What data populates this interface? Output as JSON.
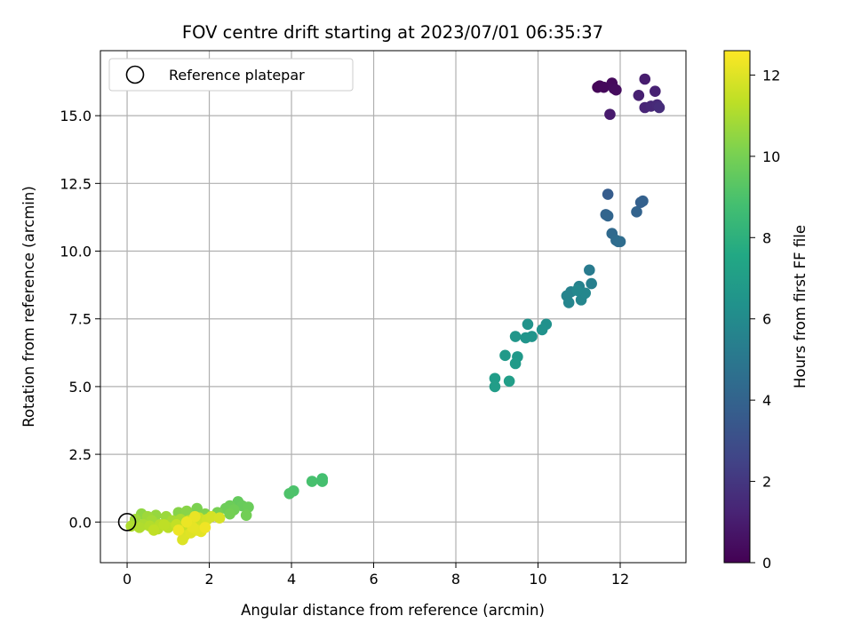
{
  "chart_data": {
    "type": "scatter",
    "title": "FOV centre drift starting at 2023/07/01 06:35:37",
    "xlabel": "Angular distance from reference (arcmin)",
    "ylabel": "Rotation from reference (arcmin)",
    "xlim": [
      -0.65,
      13.6
    ],
    "ylim": [
      -1.5,
      17.4
    ],
    "xticks": [
      0,
      2,
      4,
      6,
      8,
      10,
      12
    ],
    "xtick_labels": [
      "0",
      "2",
      "4",
      "6",
      "8",
      "10",
      "12"
    ],
    "yticks": [
      0.0,
      2.5,
      5.0,
      7.5,
      10.0,
      12.5,
      15.0
    ],
    "ytick_labels": [
      "0.0",
      "2.5",
      "5.0",
      "7.5",
      "10.0",
      "12.5",
      "15.0"
    ],
    "grid": true,
    "legend": {
      "placement": "upper-left",
      "entries": [
        "Reference platepar"
      ]
    },
    "reference_point": {
      "x": 0,
      "y": 0,
      "marker": "open-circle",
      "color": "#000000"
    },
    "colorbar": {
      "label": "Hours from first FF file",
      "range": [
        0,
        12.6
      ],
      "ticks": [
        0,
        2,
        4,
        6,
        8,
        10,
        12
      ],
      "tick_labels": [
        "0",
        "2",
        "4",
        "6",
        "8",
        "10",
        "12"
      ],
      "colormap": "viridis"
    },
    "series": [
      {
        "values": [
          {
            "x": 11.45,
            "y": 16.05,
            "c": 0.1
          },
          {
            "x": 11.5,
            "y": 16.1,
            "c": 0.2
          },
          {
            "x": 11.6,
            "y": 16.05,
            "c": 0.25
          },
          {
            "x": 11.8,
            "y": 16.2,
            "c": 0.3
          },
          {
            "x": 11.85,
            "y": 16.0,
            "c": 0.35
          },
          {
            "x": 11.9,
            "y": 15.95,
            "c": 0.4
          },
          {
            "x": 11.75,
            "y": 15.05,
            "c": 0.9
          },
          {
            "x": 12.6,
            "y": 16.35,
            "c": 1.0
          },
          {
            "x": 12.45,
            "y": 15.75,
            "c": 1.1
          },
          {
            "x": 12.85,
            "y": 15.9,
            "c": 1.2
          },
          {
            "x": 12.6,
            "y": 15.3,
            "c": 1.3
          },
          {
            "x": 12.75,
            "y": 15.35,
            "c": 1.4
          },
          {
            "x": 12.9,
            "y": 15.4,
            "c": 1.5
          },
          {
            "x": 12.95,
            "y": 15.3,
            "c": 1.6
          },
          {
            "x": 11.7,
            "y": 12.1,
            "c": 3.7
          },
          {
            "x": 12.5,
            "y": 11.8,
            "c": 3.8
          },
          {
            "x": 12.55,
            "y": 11.85,
            "c": 3.9
          },
          {
            "x": 12.4,
            "y": 11.45,
            "c": 4.0
          },
          {
            "x": 11.65,
            "y": 11.35,
            "c": 4.05
          },
          {
            "x": 11.7,
            "y": 11.3,
            "c": 4.1
          },
          {
            "x": 11.8,
            "y": 10.65,
            "c": 4.3
          },
          {
            "x": 11.9,
            "y": 10.4,
            "c": 4.4
          },
          {
            "x": 11.95,
            "y": 10.35,
            "c": 4.45
          },
          {
            "x": 12.0,
            "y": 10.35,
            "c": 4.5
          },
          {
            "x": 11.25,
            "y": 9.3,
            "c": 5.2
          },
          {
            "x": 11.3,
            "y": 8.8,
            "c": 5.4
          },
          {
            "x": 10.8,
            "y": 8.5,
            "c": 5.5
          },
          {
            "x": 11.0,
            "y": 8.7,
            "c": 5.55
          },
          {
            "x": 11.1,
            "y": 8.4,
            "c": 5.6
          },
          {
            "x": 10.7,
            "y": 8.35,
            "c": 5.65
          },
          {
            "x": 10.75,
            "y": 8.1,
            "c": 5.7
          },
          {
            "x": 11.05,
            "y": 8.2,
            "c": 5.75
          },
          {
            "x": 11.15,
            "y": 8.45,
            "c": 5.8
          },
          {
            "x": 10.95,
            "y": 8.55,
            "c": 5.85
          },
          {
            "x": 10.2,
            "y": 7.3,
            "c": 6.3
          },
          {
            "x": 10.1,
            "y": 7.1,
            "c": 6.35
          },
          {
            "x": 9.75,
            "y": 7.3,
            "c": 6.4
          },
          {
            "x": 9.85,
            "y": 6.85,
            "c": 6.45
          },
          {
            "x": 9.7,
            "y": 6.8,
            "c": 6.5
          },
          {
            "x": 9.45,
            "y": 6.85,
            "c": 6.55
          },
          {
            "x": 9.5,
            "y": 6.1,
            "c": 6.7
          },
          {
            "x": 9.2,
            "y": 6.15,
            "c": 6.75
          },
          {
            "x": 9.45,
            "y": 5.85,
            "c": 6.8
          },
          {
            "x": 8.95,
            "y": 5.3,
            "c": 6.9
          },
          {
            "x": 8.95,
            "y": 5.0,
            "c": 6.95
          },
          {
            "x": 9.3,
            "y": 5.2,
            "c": 7.0
          },
          {
            "x": 4.75,
            "y": 1.6,
            "c": 8.8
          },
          {
            "x": 4.75,
            "y": 1.5,
            "c": 8.85
          },
          {
            "x": 4.5,
            "y": 1.5,
            "c": 8.9
          },
          {
            "x": 4.05,
            "y": 1.15,
            "c": 9.0
          },
          {
            "x": 3.95,
            "y": 1.05,
            "c": 9.05
          },
          {
            "x": 2.7,
            "y": 0.75,
            "c": 9.6
          },
          {
            "x": 2.8,
            "y": 0.6,
            "c": 9.65
          },
          {
            "x": 2.95,
            "y": 0.55,
            "c": 9.7
          },
          {
            "x": 2.5,
            "y": 0.6,
            "c": 9.75
          },
          {
            "x": 2.4,
            "y": 0.5,
            "c": 9.8
          },
          {
            "x": 2.6,
            "y": 0.45,
            "c": 9.85
          },
          {
            "x": 2.9,
            "y": 0.25,
            "c": 9.9
          },
          {
            "x": 2.5,
            "y": 0.3,
            "c": 9.95
          },
          {
            "x": 2.2,
            "y": 0.35,
            "c": 10.0
          },
          {
            "x": 1.7,
            "y": 0.5,
            "c": 10.1
          },
          {
            "x": 1.9,
            "y": 0.3,
            "c": 10.2
          },
          {
            "x": 1.25,
            "y": 0.35,
            "c": 10.3
          },
          {
            "x": 1.45,
            "y": 0.4,
            "c": 10.35
          },
          {
            "x": 0.35,
            "y": 0.3,
            "c": 10.5
          },
          {
            "x": 0.7,
            "y": 0.25,
            "c": 10.6
          },
          {
            "x": 0.95,
            "y": 0.2,
            "c": 10.7
          },
          {
            "x": 0.5,
            "y": 0.2,
            "c": 10.75
          },
          {
            "x": 0.2,
            "y": 0.1,
            "c": 10.8
          },
          {
            "x": 0.6,
            "y": 0.05,
            "c": 10.85
          },
          {
            "x": 1.1,
            "y": 0.05,
            "c": 10.9
          },
          {
            "x": 1.3,
            "y": 0.1,
            "c": 10.95
          },
          {
            "x": 0.4,
            "y": -0.1,
            "c": 11.0
          },
          {
            "x": 0.1,
            "y": -0.15,
            "c": 11.05
          },
          {
            "x": 0.3,
            "y": -0.2,
            "c": 11.1
          },
          {
            "x": 0.55,
            "y": -0.15,
            "c": 11.15
          },
          {
            "x": 0.8,
            "y": -0.1,
            "c": 11.2
          },
          {
            "x": 0.75,
            "y": -0.25,
            "c": 11.25
          },
          {
            "x": 1.0,
            "y": -0.2,
            "c": 11.3
          },
          {
            "x": 0.9,
            "y": -0.1,
            "c": 11.35
          },
          {
            "x": 0.65,
            "y": -0.3,
            "c": 11.4
          },
          {
            "x": 1.2,
            "y": -0.1,
            "c": 11.45
          },
          {
            "x": 1.35,
            "y": -0.2,
            "c": 11.5
          },
          {
            "x": 1.5,
            "y": 0.05,
            "c": 11.55
          },
          {
            "x": 1.6,
            "y": -0.1,
            "c": 11.6
          },
          {
            "x": 1.75,
            "y": 0.15,
            "c": 11.65
          },
          {
            "x": 1.85,
            "y": -0.15,
            "c": 11.7
          },
          {
            "x": 1.95,
            "y": 0.1,
            "c": 11.75
          },
          {
            "x": 2.05,
            "y": 0.2,
            "c": 11.8
          },
          {
            "x": 2.25,
            "y": 0.15,
            "c": 11.85
          },
          {
            "x": 1.4,
            "y": -0.5,
            "c": 11.9
          },
          {
            "x": 1.35,
            "y": -0.65,
            "c": 11.95
          },
          {
            "x": 1.55,
            "y": -0.4,
            "c": 12.0
          },
          {
            "x": 1.7,
            "y": -0.3,
            "c": 12.05
          },
          {
            "x": 1.8,
            "y": -0.35,
            "c": 12.1
          },
          {
            "x": 1.6,
            "y": -0.2,
            "c": 12.15
          },
          {
            "x": 1.65,
            "y": 0.2,
            "c": 12.2
          },
          {
            "x": 1.45,
            "y": 0.0,
            "c": 12.25
          },
          {
            "x": 1.25,
            "y": -0.3,
            "c": 12.3
          },
          {
            "x": 1.9,
            "y": -0.2,
            "c": 12.35
          }
        ]
      }
    ]
  }
}
